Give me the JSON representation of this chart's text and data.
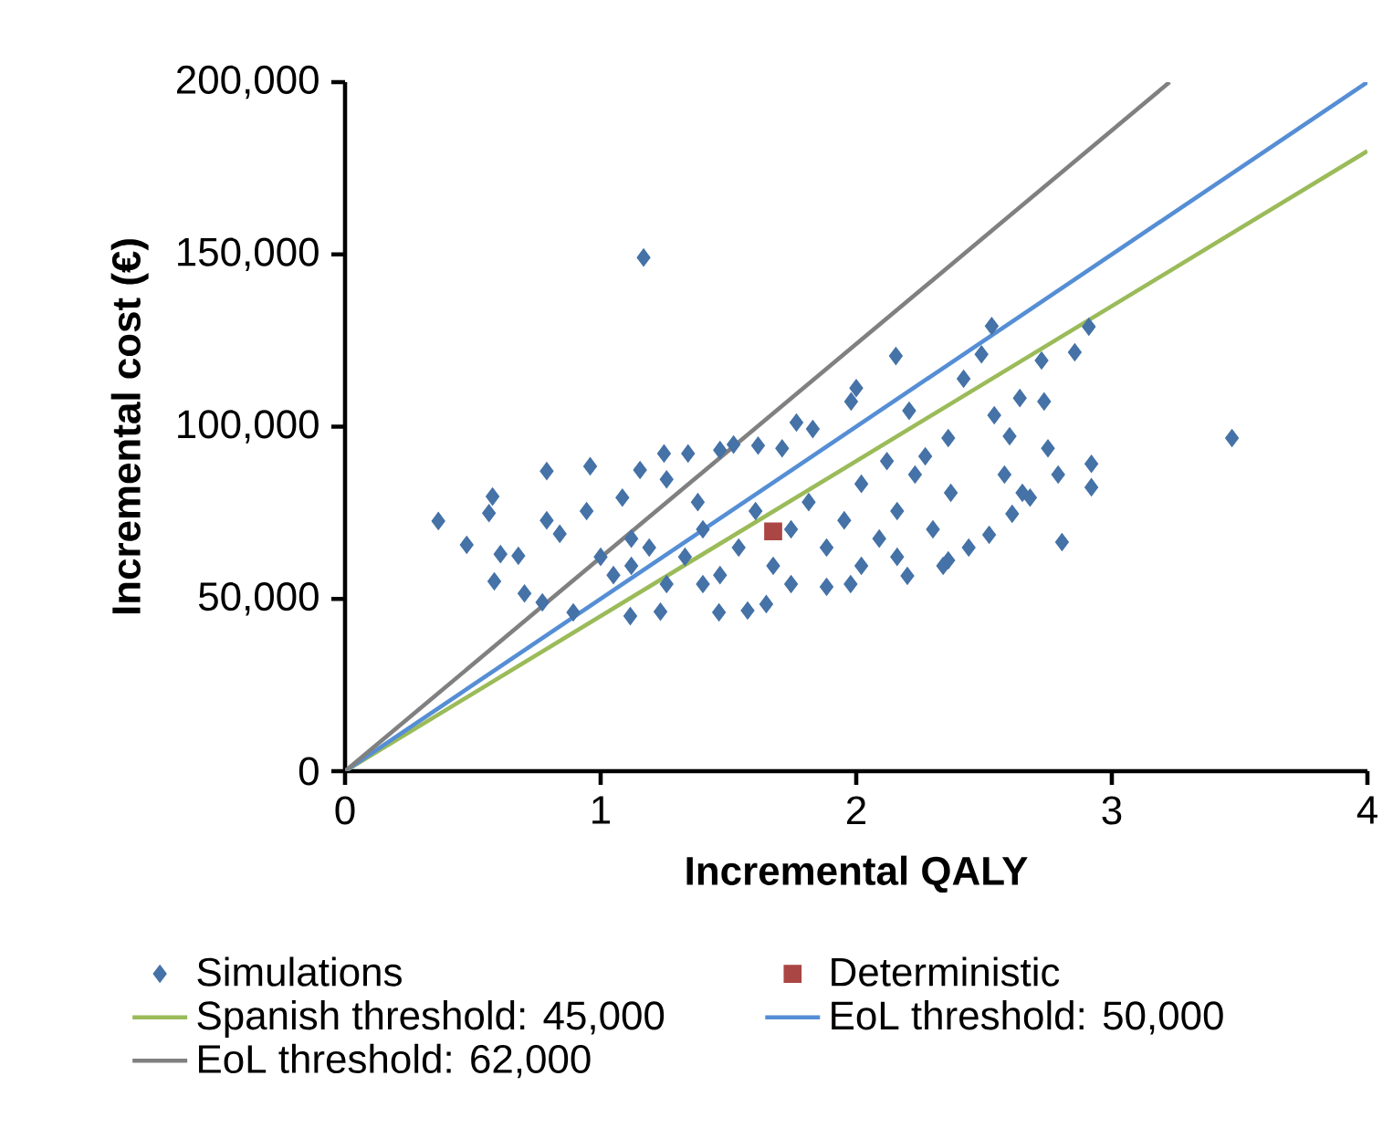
{
  "chart_data": {
    "type": "scatter",
    "xlabel": "Incremental QALY",
    "ylabel": "Incremental cost (€)",
    "xlim": [
      0,
      4
    ],
    "xticks": [
      0,
      1,
      2,
      3,
      4
    ],
    "ylim": [
      0,
      200000
    ],
    "yticks": [
      {
        "value": 0,
        "label": "0"
      },
      {
        "value": 50000,
        "label": "50,000"
      },
      {
        "value": 100000,
        "label": "100,000"
      },
      {
        "value": 150000,
        "label": "150,000"
      },
      {
        "value": 200000,
        "label": "200,000"
      }
    ],
    "legend": "bottom",
    "series": [
      {
        "name": "Simulations",
        "marker": "diamond",
        "color": "#4572a7",
        "x": [
          1.168,
          3.47,
          0.365,
          0.476,
          0.577,
          0.563,
          0.789,
          0.959,
          2.91,
          2.53,
          2.155,
          2.855,
          2.725,
          2.49,
          2.42,
          2.0,
          1.98,
          2.64,
          2.735,
          2.805,
          2.92,
          2.92,
          1.766,
          1.83,
          2.207,
          2.54,
          2.6,
          1.248,
          1.342,
          1.467,
          1.52,
          1.616,
          1.71,
          1.154,
          1.116,
          1.234,
          1.463,
          1.575,
          1.648,
          1.884,
          1.978,
          2.2,
          2.36,
          2.52,
          2.61,
          2.68,
          2.79,
          2.75,
          2.36,
          0.893,
          0.772,
          0.702,
          0.584,
          0.678,
          0.608,
          0.789,
          0.84,
          0.945,
          1.085,
          1.258,
          1.38,
          1.0,
          1.12,
          1.19,
          1.258,
          1.33,
          1.4,
          1.467,
          1.54,
          1.606,
          1.675,
          1.745,
          1.814,
          1.884,
          1.953,
          2.02,
          2.09,
          2.16,
          2.23,
          2.3,
          2.37,
          2.44,
          2.16,
          2.02,
          1.745,
          1.4,
          1.12,
          1.05,
          2.58,
          2.65,
          2.27,
          2.12,
          2.34
        ],
        "values": [
          149100,
          96700,
          72600,
          65700,
          79700,
          74900,
          87100,
          88500,
          129000,
          129200,
          120500,
          121600,
          119200,
          121000,
          113900,
          111200,
          107300,
          108300,
          107300,
          66500,
          89200,
          82400,
          101200,
          99300,
          104600,
          103300,
          97200,
          92200,
          92200,
          93200,
          94800,
          94500,
          93700,
          87400,
          45000,
          46300,
          46100,
          46600,
          48500,
          53500,
          54300,
          56700,
          61200,
          68600,
          74700,
          79400,
          86100,
          93700,
          96700,
          46100,
          49000,
          51600,
          55100,
          62500,
          63000,
          72800,
          68900,
          75500,
          79400,
          84700,
          78100,
          62200,
          59600,
          64900,
          54300,
          62200,
          70200,
          56900,
          64900,
          75500,
          59600,
          70200,
          78100,
          64900,
          72800,
          83400,
          67500,
          75500,
          86100,
          70200,
          80800,
          64900,
          62200,
          59600,
          54300,
          54300,
          67500,
          56900,
          86100,
          80800,
          91400,
          90000,
          59600
        ]
      },
      {
        "name": "Deterministic",
        "marker": "square",
        "color": "#aa4643",
        "x": [
          1.675
        ],
        "values": [
          69600
        ]
      },
      {
        "name": "Spanish threshold: 45,000",
        "type": "line",
        "marker": "none",
        "color": "#9bbb59",
        "x": [
          0,
          4
        ],
        "values": [
          0,
          180000
        ]
      },
      {
        "name": "EoL threshold: 50,000",
        "type": "line",
        "marker": "none",
        "color": "#558ed5",
        "x": [
          0,
          4
        ],
        "values": [
          0,
          200000
        ]
      },
      {
        "name": "EoL threshold: 62,000",
        "type": "line",
        "marker": "none",
        "color": "#808080",
        "x": [
          0,
          3.2258
        ],
        "values": [
          0,
          200000
        ]
      }
    ]
  }
}
